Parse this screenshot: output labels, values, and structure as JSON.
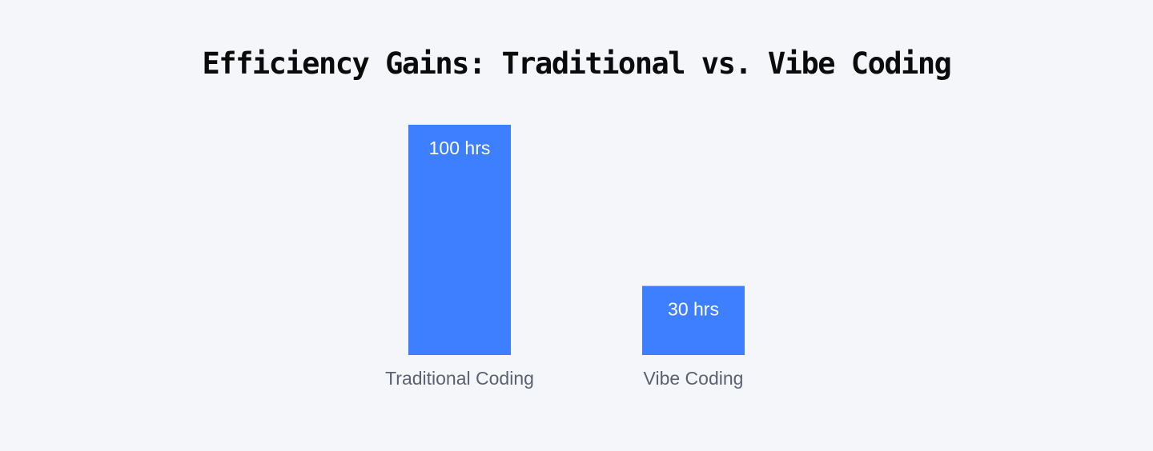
{
  "chart_data": {
    "type": "bar",
    "title": "Efficiency Gains: Traditional vs. Vibe Coding",
    "categories": [
      "Traditional Coding",
      "Vibe Coding"
    ],
    "values": [
      100,
      30
    ],
    "value_labels": [
      "100 hrs",
      "30 hrs"
    ],
    "unit": "hrs",
    "ylim": [
      0,
      100
    ],
    "grid": false,
    "legend": "none",
    "bar_color": "#3d7fff",
    "background_color": "#f4f6fa"
  }
}
